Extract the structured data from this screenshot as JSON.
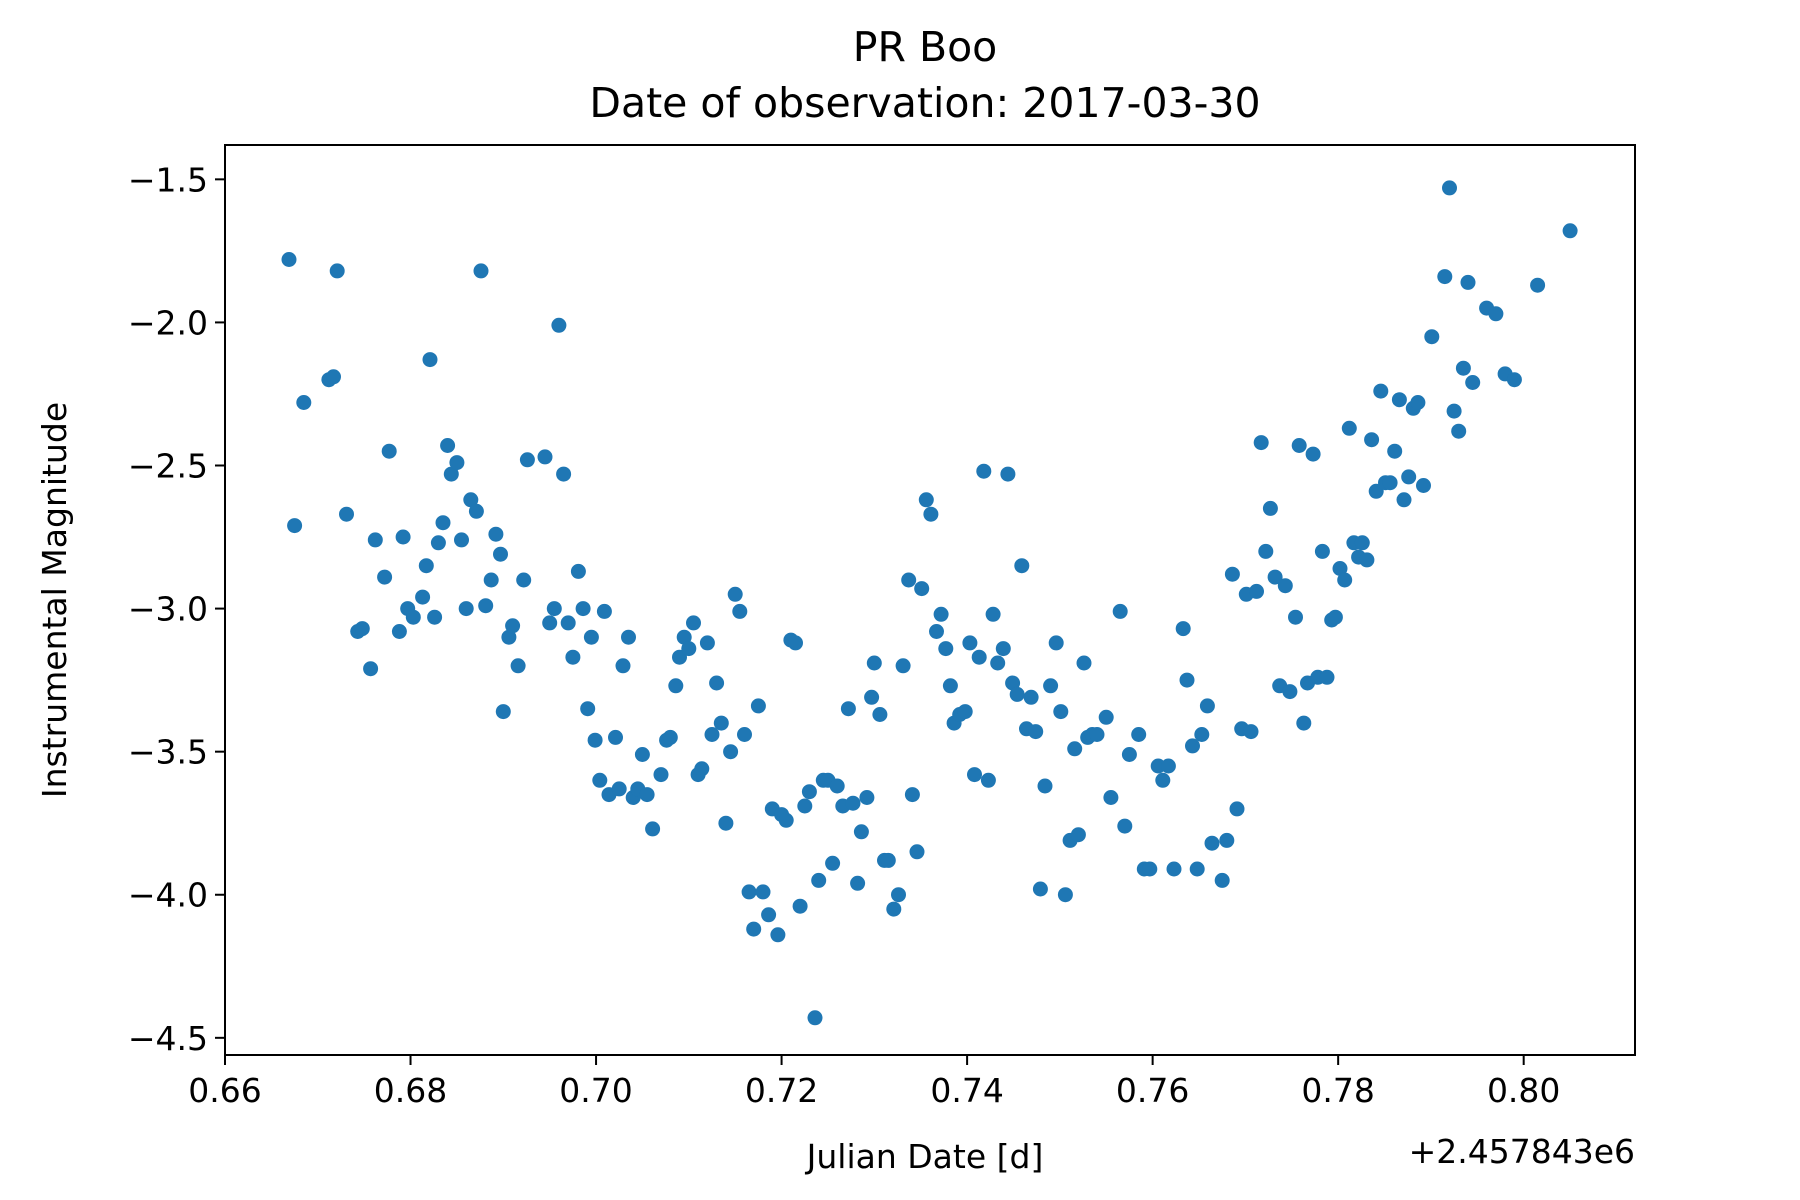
{
  "chart_data": {
    "type": "scatter",
    "title": "PR Boo",
    "subtitle": "Date of observation: 2017-03-30",
    "xlabel": "Julian Date [d]",
    "ylabel": "Instrumental Magnitude",
    "x_offset_label": "+2.457843e6",
    "xlim": [
      0.66,
      0.812
    ],
    "ylim": [
      -4.56,
      -1.38
    ],
    "x_ticks": [
      0.66,
      0.68,
      0.7,
      0.72,
      0.74,
      0.76,
      0.78,
      0.8
    ],
    "x_tick_labels": [
      "0.66",
      "0.68",
      "0.70",
      "0.72",
      "0.74",
      "0.76",
      "0.78",
      "0.80"
    ],
    "y_ticks": [
      -1.5,
      -2.0,
      -2.5,
      -3.0,
      -3.5,
      -4.0,
      -4.5
    ],
    "y_tick_labels": [
      "−1.5",
      "−2.0",
      "−2.5",
      "−3.0",
      "−3.5",
      "−4.0",
      "−4.5"
    ],
    "grid": false,
    "color": "#1f77b4",
    "points": [
      [
        0.6669,
        -1.78
      ],
      [
        0.6675,
        -2.71
      ],
      [
        0.6685,
        -2.28
      ],
      [
        0.6712,
        -2.2
      ],
      [
        0.6717,
        -2.19
      ],
      [
        0.6721,
        -1.82
      ],
      [
        0.6731,
        -2.67
      ],
      [
        0.6743,
        -3.08
      ],
      [
        0.6748,
        -3.07
      ],
      [
        0.6757,
        -3.21
      ],
      [
        0.6762,
        -2.76
      ],
      [
        0.6772,
        -2.89
      ],
      [
        0.6777,
        -2.45
      ],
      [
        0.6788,
        -3.08
      ],
      [
        0.6792,
        -2.75
      ],
      [
        0.6797,
        -3.0
      ],
      [
        0.6803,
        -3.03
      ],
      [
        0.6813,
        -2.96
      ],
      [
        0.6817,
        -2.85
      ],
      [
        0.6821,
        -2.13
      ],
      [
        0.6826,
        -3.03
      ],
      [
        0.683,
        -2.77
      ],
      [
        0.6835,
        -2.7
      ],
      [
        0.684,
        -2.43
      ],
      [
        0.6844,
        -2.53
      ],
      [
        0.685,
        -2.49
      ],
      [
        0.6855,
        -2.76
      ],
      [
        0.686,
        -3.0
      ],
      [
        0.6865,
        -2.62
      ],
      [
        0.6871,
        -2.66
      ],
      [
        0.6876,
        -1.82
      ],
      [
        0.6881,
        -2.99
      ],
      [
        0.6887,
        -2.9
      ],
      [
        0.6892,
        -2.74
      ],
      [
        0.6897,
        -2.81
      ],
      [
        0.69,
        -3.36
      ],
      [
        0.6906,
        -3.1
      ],
      [
        0.691,
        -3.06
      ],
      [
        0.6916,
        -3.2
      ],
      [
        0.6922,
        -2.9
      ],
      [
        0.6926,
        -2.48
      ],
      [
        0.6945,
        -2.47
      ],
      [
        0.695,
        -3.05
      ],
      [
        0.6955,
        -3.0
      ],
      [
        0.696,
        -2.01
      ],
      [
        0.6965,
        -2.53
      ],
      [
        0.697,
        -3.05
      ],
      [
        0.6975,
        -3.17
      ],
      [
        0.6981,
        -2.87
      ],
      [
        0.6986,
        -3.0
      ],
      [
        0.6991,
        -3.35
      ],
      [
        0.6995,
        -3.1
      ],
      [
        0.6999,
        -3.46
      ],
      [
        0.7004,
        -3.6
      ],
      [
        0.7009,
        -3.01
      ],
      [
        0.7014,
        -3.65
      ],
      [
        0.7021,
        -3.45
      ],
      [
        0.7025,
        -3.63
      ],
      [
        0.7029,
        -3.2
      ],
      [
        0.7035,
        -3.1
      ],
      [
        0.704,
        -3.66
      ],
      [
        0.7045,
        -3.63
      ],
      [
        0.705,
        -3.51
      ],
      [
        0.7055,
        -3.65
      ],
      [
        0.7061,
        -3.77
      ],
      [
        0.707,
        -3.58
      ],
      [
        0.7076,
        -3.46
      ],
      [
        0.708,
        -3.45
      ],
      [
        0.7086,
        -3.27
      ],
      [
        0.709,
        -3.17
      ],
      [
        0.7095,
        -3.1
      ],
      [
        0.71,
        -3.14
      ],
      [
        0.7105,
        -3.05
      ],
      [
        0.711,
        -3.58
      ],
      [
        0.7114,
        -3.56
      ],
      [
        0.712,
        -3.12
      ],
      [
        0.7125,
        -3.44
      ],
      [
        0.713,
        -3.26
      ],
      [
        0.7135,
        -3.4
      ],
      [
        0.714,
        -3.75
      ],
      [
        0.7145,
        -3.5
      ],
      [
        0.715,
        -2.95
      ],
      [
        0.7155,
        -3.01
      ],
      [
        0.716,
        -3.44
      ],
      [
        0.7165,
        -3.99
      ],
      [
        0.717,
        -4.12
      ],
      [
        0.7175,
        -3.34
      ],
      [
        0.718,
        -3.99
      ],
      [
        0.7186,
        -4.07
      ],
      [
        0.719,
        -3.7
      ],
      [
        0.7196,
        -4.14
      ],
      [
        0.72,
        -3.72
      ],
      [
        0.7205,
        -3.74
      ],
      [
        0.721,
        -3.11
      ],
      [
        0.7215,
        -3.12
      ],
      [
        0.722,
        -4.04
      ],
      [
        0.7225,
        -3.69
      ],
      [
        0.723,
        -3.64
      ],
      [
        0.7236,
        -4.43
      ],
      [
        0.724,
        -3.95
      ],
      [
        0.7245,
        -3.6
      ],
      [
        0.725,
        -3.6
      ],
      [
        0.7255,
        -3.89
      ],
      [
        0.726,
        -3.62
      ],
      [
        0.7266,
        -3.69
      ],
      [
        0.7272,
        -3.35
      ],
      [
        0.7277,
        -3.68
      ],
      [
        0.7282,
        -3.96
      ],
      [
        0.7286,
        -3.78
      ],
      [
        0.7292,
        -3.66
      ],
      [
        0.7297,
        -3.31
      ],
      [
        0.73,
        -3.19
      ],
      [
        0.7306,
        -3.37
      ],
      [
        0.7311,
        -3.88
      ],
      [
        0.7315,
        -3.88
      ],
      [
        0.7321,
        -4.05
      ],
      [
        0.7326,
        -4.0
      ],
      [
        0.7331,
        -3.2
      ],
      [
        0.7337,
        -2.9
      ],
      [
        0.7341,
        -3.65
      ],
      [
        0.7346,
        -3.85
      ],
      [
        0.7351,
        -2.93
      ],
      [
        0.7356,
        -2.62
      ],
      [
        0.7361,
        -2.67
      ],
      [
        0.7367,
        -3.08
      ],
      [
        0.7372,
        -3.02
      ],
      [
        0.7377,
        -3.14
      ],
      [
        0.7382,
        -3.27
      ],
      [
        0.7386,
        -3.4
      ],
      [
        0.7392,
        -3.37
      ],
      [
        0.7398,
        -3.36
      ],
      [
        0.7403,
        -3.12
      ],
      [
        0.7408,
        -3.58
      ],
      [
        0.7413,
        -3.17
      ],
      [
        0.7418,
        -2.52
      ],
      [
        0.7423,
        -3.6
      ],
      [
        0.7428,
        -3.02
      ],
      [
        0.7433,
        -3.19
      ],
      [
        0.7439,
        -3.14
      ],
      [
        0.7444,
        -2.53
      ],
      [
        0.7449,
        -3.26
      ],
      [
        0.7454,
        -3.3
      ],
      [
        0.7459,
        -2.85
      ],
      [
        0.7464,
        -3.42
      ],
      [
        0.7469,
        -3.31
      ],
      [
        0.7474,
        -3.43
      ],
      [
        0.7479,
        -3.98
      ],
      [
        0.7484,
        -3.62
      ],
      [
        0.749,
        -3.27
      ],
      [
        0.7496,
        -3.12
      ],
      [
        0.7501,
        -3.36
      ],
      [
        0.7506,
        -4.0
      ],
      [
        0.7511,
        -3.81
      ],
      [
        0.7516,
        -3.49
      ],
      [
        0.752,
        -3.79
      ],
      [
        0.7526,
        -3.19
      ],
      [
        0.753,
        -3.45
      ],
      [
        0.7535,
        -3.44
      ],
      [
        0.754,
        -3.44
      ],
      [
        0.755,
        -3.38
      ],
      [
        0.7555,
        -3.66
      ],
      [
        0.7565,
        -3.01
      ],
      [
        0.757,
        -3.76
      ],
      [
        0.7575,
        -3.51
      ],
      [
        0.7585,
        -3.44
      ],
      [
        0.7591,
        -3.91
      ],
      [
        0.7597,
        -3.91
      ],
      [
        0.7606,
        -3.55
      ],
      [
        0.7611,
        -3.6
      ],
      [
        0.7617,
        -3.55
      ],
      [
        0.7623,
        -3.91
      ],
      [
        0.7633,
        -3.07
      ],
      [
        0.7637,
        -3.25
      ],
      [
        0.7643,
        -3.48
      ],
      [
        0.7648,
        -3.91
      ],
      [
        0.7653,
        -3.44
      ],
      [
        0.7659,
        -3.34
      ],
      [
        0.7664,
        -3.82
      ],
      [
        0.7675,
        -3.95
      ],
      [
        0.768,
        -3.81
      ],
      [
        0.7686,
        -2.88
      ],
      [
        0.7691,
        -3.7
      ],
      [
        0.7696,
        -3.42
      ],
      [
        0.7701,
        -2.95
      ],
      [
        0.7706,
        -3.43
      ],
      [
        0.7712,
        -2.94
      ],
      [
        0.7717,
        -2.42
      ],
      [
        0.7722,
        -2.8
      ],
      [
        0.7727,
        -2.65
      ],
      [
        0.7732,
        -2.89
      ],
      [
        0.7737,
        -3.27
      ],
      [
        0.7743,
        -2.92
      ],
      [
        0.7748,
        -3.29
      ],
      [
        0.7754,
        -3.03
      ],
      [
        0.7758,
        -2.43
      ],
      [
        0.7763,
        -3.4
      ],
      [
        0.7767,
        -3.26
      ],
      [
        0.7773,
        -2.46
      ],
      [
        0.7778,
        -3.24
      ],
      [
        0.7783,
        -2.8
      ],
      [
        0.7788,
        -3.24
      ],
      [
        0.7793,
        -3.04
      ],
      [
        0.7797,
        -3.03
      ],
      [
        0.7802,
        -2.86
      ],
      [
        0.7807,
        -2.9
      ],
      [
        0.7812,
        -2.37
      ],
      [
        0.7817,
        -2.77
      ],
      [
        0.7822,
        -2.82
      ],
      [
        0.7826,
        -2.77
      ],
      [
        0.7831,
        -2.83
      ],
      [
        0.7836,
        -2.41
      ],
      [
        0.7841,
        -2.59
      ],
      [
        0.7846,
        -2.24
      ],
      [
        0.7851,
        -2.56
      ],
      [
        0.7856,
        -2.56
      ],
      [
        0.7861,
        -2.45
      ],
      [
        0.7866,
        -2.27
      ],
      [
        0.7871,
        -2.62
      ],
      [
        0.7876,
        -2.54
      ],
      [
        0.7881,
        -2.3
      ],
      [
        0.7886,
        -2.28
      ],
      [
        0.7892,
        -2.57
      ],
      [
        0.7901,
        -2.05
      ],
      [
        0.7915,
        -1.84
      ],
      [
        0.792,
        -1.53
      ],
      [
        0.7925,
        -2.31
      ],
      [
        0.793,
        -2.38
      ],
      [
        0.7935,
        -2.16
      ],
      [
        0.794,
        -1.86
      ],
      [
        0.7945,
        -2.21
      ],
      [
        0.796,
        -1.95
      ],
      [
        0.797,
        -1.97
      ],
      [
        0.798,
        -2.18
      ],
      [
        0.799,
        -2.2
      ],
      [
        0.8015,
        -1.87
      ],
      [
        0.805,
        -1.68
      ]
    ]
  }
}
